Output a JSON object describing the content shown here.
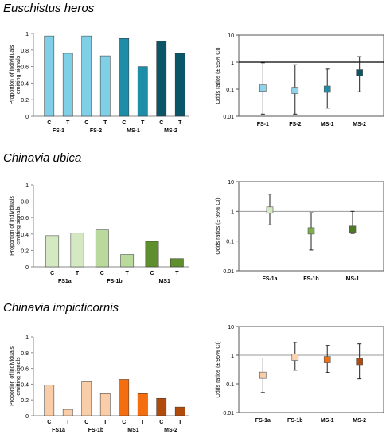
{
  "panels": [
    {
      "title": "Euschistus heros",
      "bar": {
        "type": "bar",
        "ylabel": "Proportion of individuals emitting signals",
        "ylim": [
          0,
          1
        ],
        "yticks": [
          "0",
          "0.2",
          "0.4",
          "0.6",
          "0.8",
          "1"
        ],
        "bars": [
          {
            "label": "C",
            "value": 0.97,
            "color": "#7FD0E6"
          },
          {
            "label": "T",
            "value": 0.76,
            "color": "#7FD0E6"
          },
          {
            "label": "C",
            "value": 0.97,
            "color": "#7FD0E6"
          },
          {
            "label": "T",
            "value": 0.73,
            "color": "#7FD0E6"
          },
          {
            "label": "C",
            "value": 0.94,
            "color": "#1E8EA8"
          },
          {
            "label": "T",
            "value": 0.6,
            "color": "#1E8EA8"
          },
          {
            "label": "C",
            "value": 0.91,
            "color": "#0A5566"
          },
          {
            "label": "T",
            "value": 0.76,
            "color": "#0A5566"
          }
        ],
        "groups": [
          "FS-1",
          "FS-2",
          "MS-1",
          "MS-2"
        ]
      },
      "odds": {
        "type": "scatter",
        "ylabel": "Odds ratios (± 95% CI)",
        "yticks": [
          "10",
          "1",
          "0.1",
          "0.01"
        ],
        "reference_line": 1,
        "points": [
          {
            "label": "FS-1",
            "value": 0.11,
            "lo": 0.012,
            "hi": 0.95,
            "color": "#8FD3EC"
          },
          {
            "label": "FS-2",
            "value": 0.09,
            "lo": 0.012,
            "hi": 0.8,
            "color": "#8FD3EC"
          },
          {
            "label": "MS-1",
            "value": 0.1,
            "lo": 0.02,
            "hi": 0.55,
            "color": "#1E8EA8"
          },
          {
            "label": "MS-2",
            "value": 0.4,
            "lo": 0.08,
            "hi": 1.6,
            "color": "#0A5566"
          }
        ]
      }
    },
    {
      "title": "Chinavia ubica",
      "bar": {
        "type": "bar",
        "ylabel": "Proportion of individuals emitting signals",
        "ylim": [
          0,
          1
        ],
        "yticks": [
          "0",
          "0.2",
          "0.4",
          "0.6",
          "0.8",
          "1"
        ],
        "bars": [
          {
            "label": "C",
            "value": 0.38,
            "color": "#D4E8C2"
          },
          {
            "label": "T",
            "value": 0.41,
            "color": "#D4E8C2"
          },
          {
            "label": "C",
            "value": 0.45,
            "color": "#B9DA9C"
          },
          {
            "label": "T",
            "value": 0.15,
            "color": "#B9DA9C"
          },
          {
            "label": "C",
            "value": 0.31,
            "color": "#5E8E2E"
          },
          {
            "label": "T",
            "value": 0.1,
            "color": "#5E8E2E"
          }
        ],
        "groups": [
          "FS1a",
          "FS-1b",
          "MS1"
        ]
      },
      "odds": {
        "type": "scatter",
        "ylabel": "Odds ratios (± 95% CI)",
        "yticks": [
          "10",
          "1",
          "0.1",
          "0.01"
        ],
        "reference_line": 1,
        "points": [
          {
            "label": "FS-1a",
            "value": 1.1,
            "lo": 0.35,
            "hi": 3.8,
            "color": "#D4E8C2"
          },
          {
            "label": "FS-1b",
            "value": 0.22,
            "lo": 0.05,
            "hi": 0.9,
            "color": "#7DB04A"
          },
          {
            "label": "MS-1",
            "value": 0.25,
            "lo": 0.18,
            "hi": 1.0,
            "color": "#4E7A26"
          }
        ]
      }
    },
    {
      "title": "Chinavia impicticornis",
      "bar": {
        "type": "bar",
        "ylabel": "Proportion of individuals emitting signals",
        "ylim": [
          0,
          1
        ],
        "yticks": [
          "0",
          "0.2",
          "0.4",
          "0.6",
          "0.8",
          "1"
        ],
        "bars": [
          {
            "label": "C",
            "value": 0.39,
            "color": "#F9CDA8"
          },
          {
            "label": "T",
            "value": 0.08,
            "color": "#F9CDA8"
          },
          {
            "label": "C",
            "value": 0.43,
            "color": "#F9CDA8"
          },
          {
            "label": "T",
            "value": 0.28,
            "color": "#F9CDA8"
          },
          {
            "label": "C",
            "value": 0.46,
            "color": "#F46D0E"
          },
          {
            "label": "T",
            "value": 0.28,
            "color": "#F46D0E"
          },
          {
            "label": "C",
            "value": 0.22,
            "color": "#B24A0C"
          },
          {
            "label": "T",
            "value": 0.11,
            "color": "#B24A0C"
          }
        ],
        "groups": [
          "FS1a",
          "FS-1b",
          "MS1",
          "MS-2"
        ]
      },
      "odds": {
        "type": "scatter",
        "ylabel": "Odds ratios (± 95% CI)",
        "yticks": [
          "10",
          "1",
          "0.1",
          "0.01"
        ],
        "reference_line": 1,
        "points": [
          {
            "label": "FS-1a",
            "value": 0.2,
            "lo": 0.05,
            "hi": 0.8,
            "color": "#F9CDA8"
          },
          {
            "label": "FS-1b",
            "value": 0.85,
            "lo": 0.3,
            "hi": 2.8,
            "color": "#FAD3B0"
          },
          {
            "label": "MS-1",
            "value": 0.7,
            "lo": 0.25,
            "hi": 2.2,
            "color": "#F46D0E"
          },
          {
            "label": "MS-2",
            "value": 0.6,
            "lo": 0.15,
            "hi": 2.5,
            "color": "#B24A0C"
          }
        ]
      }
    }
  ]
}
